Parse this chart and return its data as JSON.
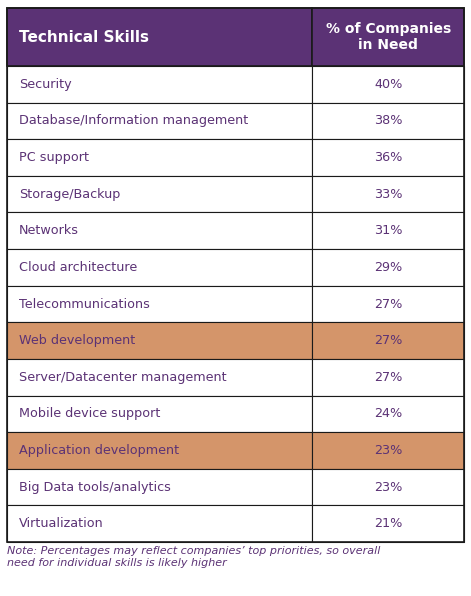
{
  "skills": [
    "Security",
    "Database/Information management",
    "PC support",
    "Storage/Backup",
    "Networks",
    "Cloud architecture",
    "Telecommunications",
    "Web development",
    "Server/Datacenter management",
    "Mobile device support",
    "Application development",
    "Big Data tools/analytics",
    "Virtualization"
  ],
  "percentages": [
    "40%",
    "38%",
    "36%",
    "33%",
    "31%",
    "29%",
    "27%",
    "27%",
    "27%",
    "24%",
    "23%",
    "23%",
    "21%"
  ],
  "highlighted_rows": [
    7,
    10
  ],
  "header_bg": "#5b3275",
  "header_text": "#ffffff",
  "highlight_bg": "#d4956a",
  "highlight_text": "#5b3275",
  "normal_text": "#5b3275",
  "row_bg": "#ffffff",
  "border_color": "#1a1a1a",
  "col1_header": "Technical Skills",
  "col2_header": "% of Companies\nin Need",
  "note": "Note: Percentages may reflect companies’ top priorities, so overall\nneed for individual skills is likely higher",
  "note_color": "#5b3275",
  "fig_width": 4.71,
  "fig_height": 5.96
}
